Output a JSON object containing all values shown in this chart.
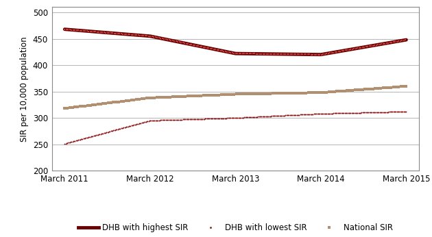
{
  "x_labels": [
    "March 2011",
    "March 2012",
    "March 2013",
    "March 2014",
    "March 2015"
  ],
  "x_values": [
    0,
    1,
    2,
    3,
    4
  ],
  "highest_sir": [
    468,
    455,
    422,
    420,
    448
  ],
  "lowest_sir": [
    251,
    295,
    300,
    308,
    312
  ],
  "national_sir": [
    318,
    338,
    345,
    348,
    360
  ],
  "highest_color_dark": "#6B0000",
  "highest_color_light": "#C04040",
  "lowest_color": "#8B1010",
  "national_color": "#B09070",
  "ylabel": "SIR per 10,000 population",
  "ylim": [
    200,
    510
  ],
  "yticks": [
    200,
    250,
    300,
    350,
    400,
    450,
    500
  ],
  "legend_highest": "DHB with highest SIR",
  "legend_lowest": "DHB with lowest SIR",
  "legend_national": "National SIR",
  "background_color": "#ffffff",
  "grid_color": "#aaaaaa",
  "border_color": "#888888"
}
